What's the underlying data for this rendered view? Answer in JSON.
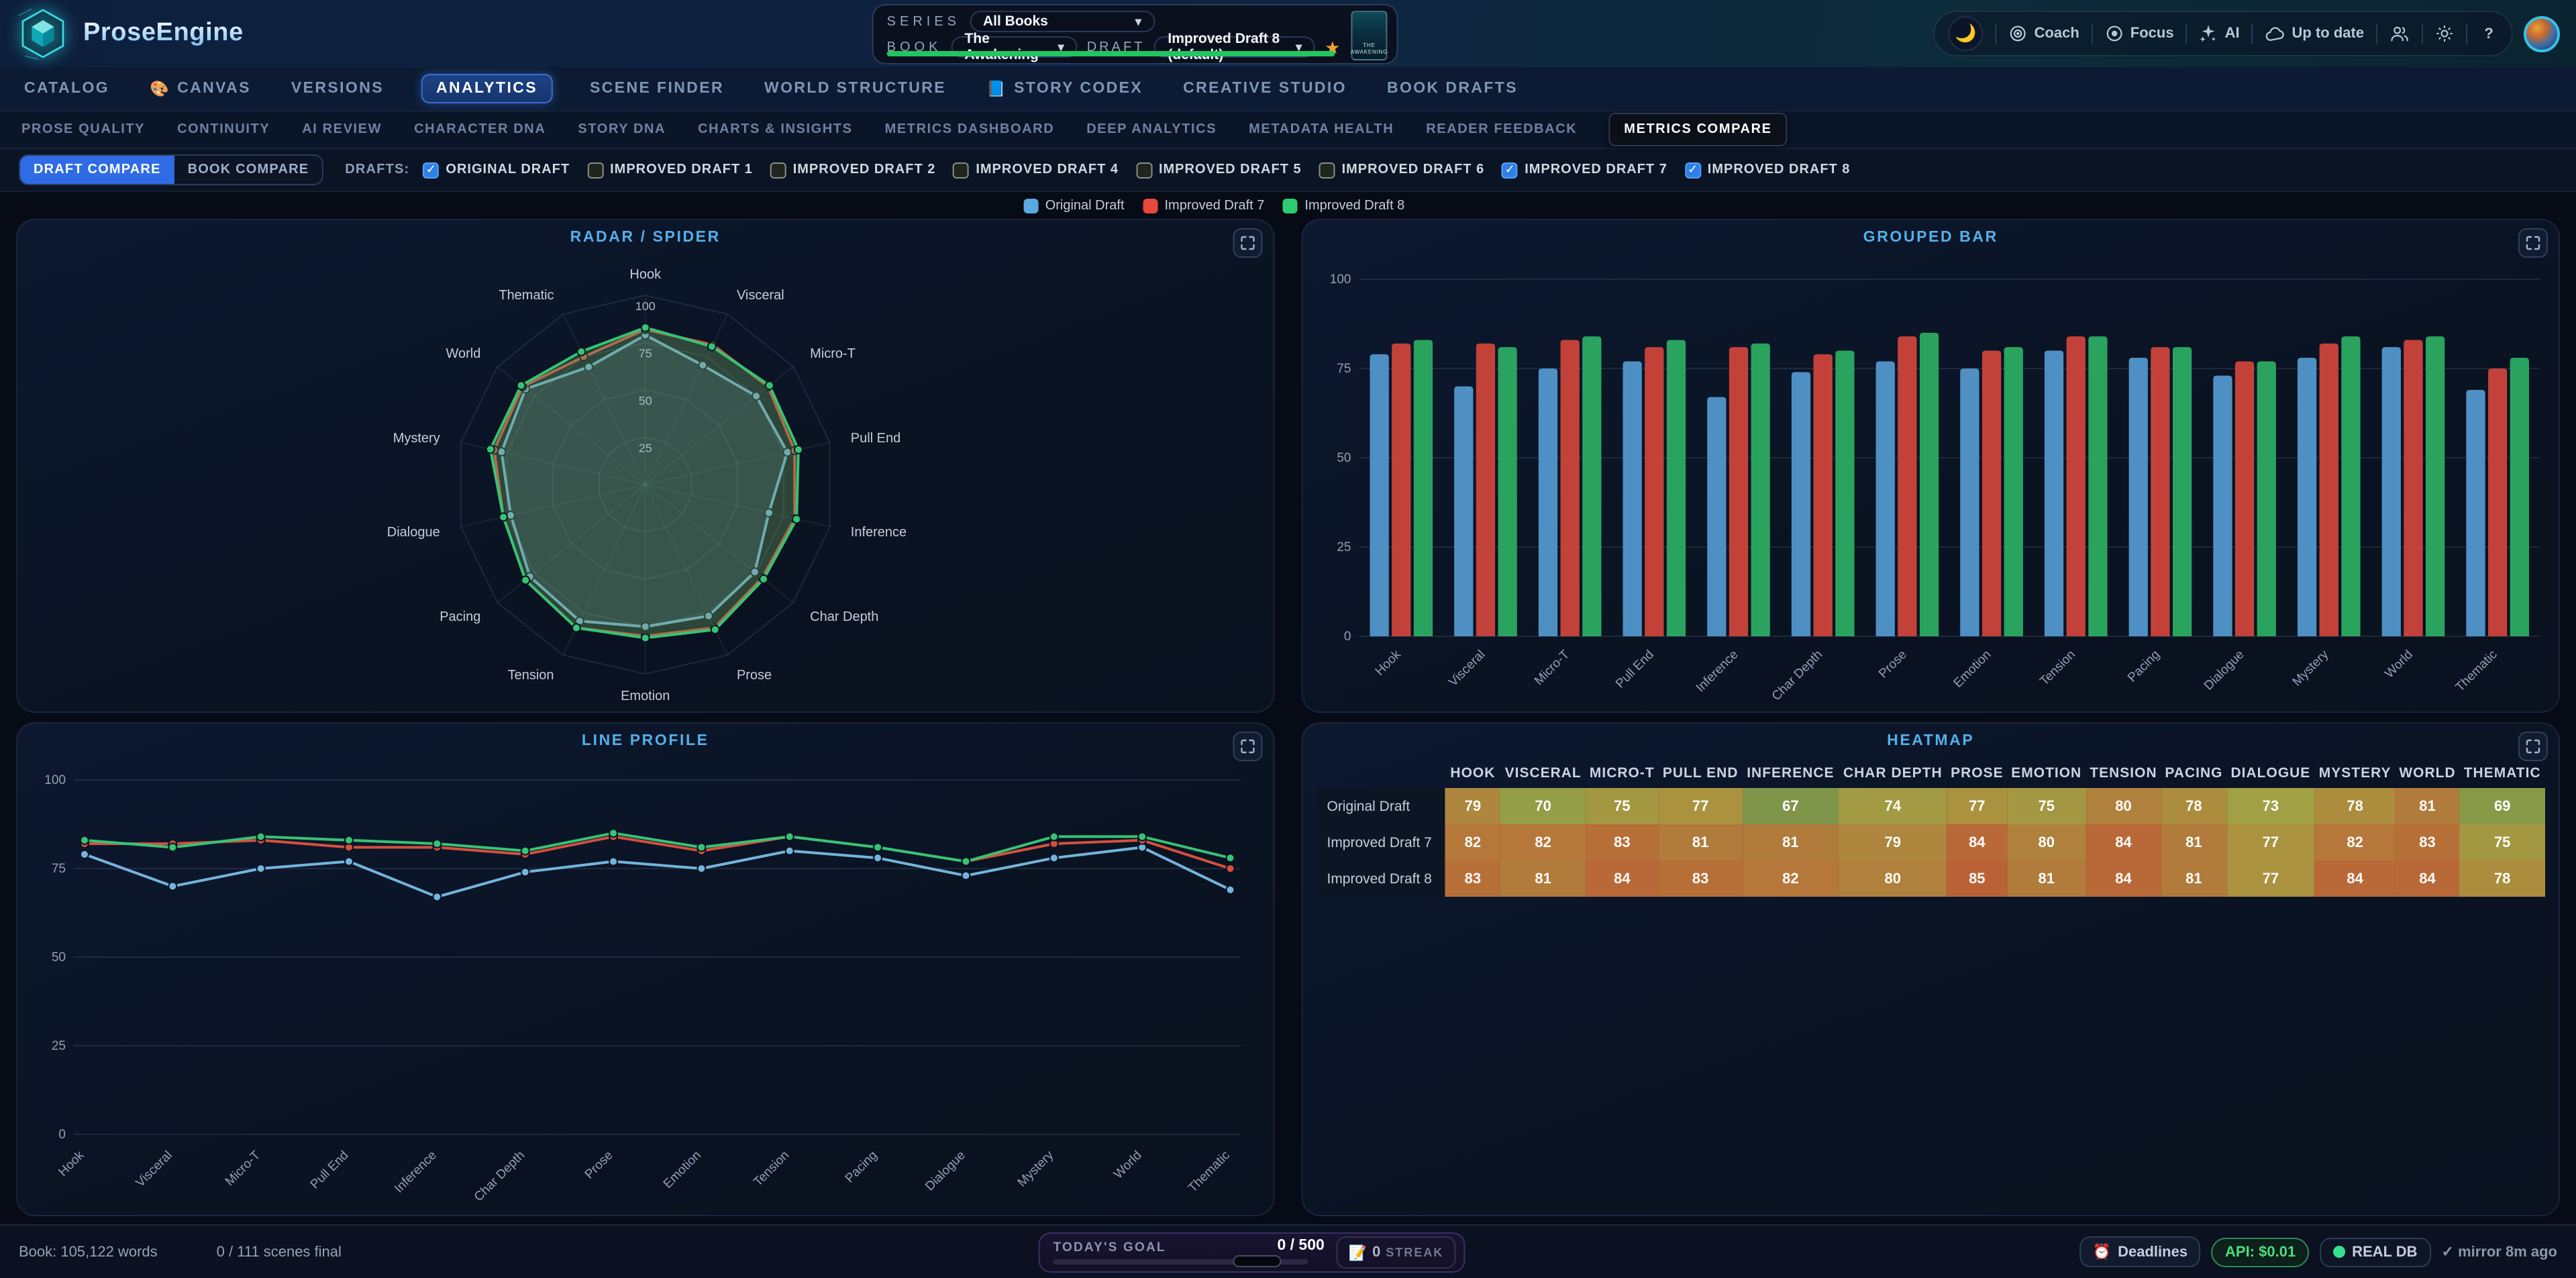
{
  "app": {
    "title": "ProseEngine"
  },
  "header": {
    "series_label": "SERIES",
    "series_value": "All Books",
    "book_label": "BOOK",
    "book_value": "The Awakening",
    "draft_label": "DRAFT",
    "draft_value": "Improved Draft 8 (default)",
    "cover_title": "THE AWAKENING",
    "actions": [
      {
        "icon": "target-icon",
        "label": "Coach"
      },
      {
        "icon": "focus-icon",
        "label": "Focus"
      },
      {
        "icon": "sparkles-icon",
        "label": "AI"
      },
      {
        "icon": "cloud-icon",
        "label": "Up to date"
      },
      {
        "icon": "users-icon",
        "label": ""
      },
      {
        "icon": "gear-icon",
        "label": ""
      },
      {
        "icon": "help-icon",
        "label": ""
      }
    ]
  },
  "nav": {
    "active": "ANALYTICS",
    "tabs": [
      {
        "label": "CATALOG"
      },
      {
        "label": "CANVAS",
        "icon": "🎨"
      },
      {
        "label": "VERSIONS"
      },
      {
        "label": "ANALYTICS"
      },
      {
        "label": "SCENE FINDER"
      },
      {
        "label": "WORLD STRUCTURE"
      },
      {
        "label": "STORY CODEX",
        "icon": "📘"
      },
      {
        "label": "CREATIVE STUDIO"
      },
      {
        "label": "BOOK DRAFTS"
      }
    ]
  },
  "subnav": {
    "active": "METRICS COMPARE",
    "tabs": [
      {
        "label": "PROSE QUALITY"
      },
      {
        "label": "CONTINUITY"
      },
      {
        "label": "AI REVIEW"
      },
      {
        "label": "CHARACTER DNA"
      },
      {
        "label": "STORY DNA"
      },
      {
        "label": "CHARTS & INSIGHTS"
      },
      {
        "label": "METRICS DASHBOARD"
      },
      {
        "label": "DEEP ANALYTICS"
      },
      {
        "label": "METADATA HEALTH"
      },
      {
        "label": "READER FEEDBACK"
      },
      {
        "label": "METRICS COMPARE"
      }
    ]
  },
  "filterbar": {
    "mode_buttons": [
      {
        "label": "DRAFT COMPARE",
        "active": true
      },
      {
        "label": "BOOK COMPARE",
        "active": false
      }
    ],
    "drafts_label": "DRAFTS:",
    "drafts": [
      {
        "label": "ORIGINAL DRAFT",
        "checked": true
      },
      {
        "label": "IMPROVED DRAFT 1",
        "checked": false
      },
      {
        "label": "IMPROVED DRAFT 2",
        "checked": false
      },
      {
        "label": "IMPROVED DRAFT 4",
        "checked": false
      },
      {
        "label": "IMPROVED DRAFT 5",
        "checked": false
      },
      {
        "label": "IMPROVED DRAFT 6",
        "checked": false
      },
      {
        "label": "IMPROVED DRAFT 7",
        "checked": true
      },
      {
        "label": "IMPROVED DRAFT 8",
        "checked": true
      }
    ]
  },
  "legend": [
    {
      "label": "Original Draft",
      "color": "#5aa9e0"
    },
    {
      "label": "Improved Draft 7",
      "color": "#e8473c"
    },
    {
      "label": "Improved Draft 8",
      "color": "#2ecc71"
    }
  ],
  "panels": {
    "radar_title": "RADAR / SPIDER",
    "bar_title": "GROUPED BAR",
    "line_title": "LINE PROFILE",
    "heatmap_title": "HEATMAP"
  },
  "chart_data": [
    {
      "type": "radar",
      "title": "RADAR / SPIDER",
      "categories": [
        "Hook",
        "Visceral",
        "Micro-T",
        "Pull End",
        "Inference",
        "Char Depth",
        "Prose",
        "Emotion",
        "Tension",
        "Pacing",
        "Dialogue",
        "Mystery",
        "World",
        "Thematic"
      ],
      "rmax": 100,
      "ticks": [
        25,
        50,
        75,
        100
      ],
      "series": [
        {
          "name": "Original Draft",
          "color": "#74b4dc",
          "values": [
            79,
            70,
            75,
            77,
            67,
            74,
            77,
            75,
            80,
            78,
            73,
            78,
            81,
            69
          ]
        },
        {
          "name": "Improved Draft 7",
          "color": "#d4503e",
          "values": [
            82,
            82,
            83,
            81,
            81,
            79,
            84,
            80,
            84,
            81,
            77,
            82,
            83,
            75
          ]
        },
        {
          "name": "Improved Draft 8",
          "color": "#36c474",
          "values": [
            83,
            81,
            84,
            83,
            82,
            80,
            85,
            81,
            84,
            81,
            77,
            84,
            84,
            78
          ]
        }
      ]
    },
    {
      "type": "bar",
      "title": "GROUPED BAR",
      "categories": [
        "Hook",
        "Visceral",
        "Micro-T",
        "Pull End",
        "Inference",
        "Char Depth",
        "Prose",
        "Emotion",
        "Tension",
        "Pacing",
        "Dialogue",
        "Mystery",
        "World",
        "Thematic"
      ],
      "ylim": [
        0,
        100
      ],
      "yticks": [
        0,
        25,
        50,
        75,
        100
      ],
      "series": [
        {
          "name": "Original Draft",
          "color": "#4e90c4",
          "values": [
            79,
            70,
            75,
            77,
            67,
            74,
            77,
            75,
            80,
            78,
            73,
            78,
            81,
            69
          ]
        },
        {
          "name": "Improved Draft 7",
          "color": "#c2423a",
          "values": [
            82,
            82,
            83,
            81,
            81,
            79,
            84,
            80,
            84,
            81,
            77,
            82,
            83,
            75
          ]
        },
        {
          "name": "Improved Draft 8",
          "color": "#29a35e",
          "values": [
            83,
            81,
            84,
            83,
            82,
            80,
            85,
            81,
            84,
            81,
            77,
            84,
            84,
            78
          ]
        }
      ]
    },
    {
      "type": "line",
      "title": "LINE PROFILE",
      "categories": [
        "Hook",
        "Visceral",
        "Micro-T",
        "Pull End",
        "Inference",
        "Char Depth",
        "Prose",
        "Emotion",
        "Tension",
        "Pacing",
        "Dialogue",
        "Mystery",
        "World",
        "Thematic"
      ],
      "ylim": [
        0,
        100
      ],
      "yticks": [
        0,
        25,
        50,
        75,
        100
      ],
      "series": [
        {
          "name": "Original Draft",
          "color": "#74b4dc",
          "values": [
            79,
            70,
            75,
            77,
            67,
            74,
            77,
            75,
            80,
            78,
            73,
            78,
            81,
            69
          ]
        },
        {
          "name": "Improved Draft 7",
          "color": "#d4503e",
          "values": [
            82,
            82,
            83,
            81,
            81,
            79,
            84,
            80,
            84,
            81,
            77,
            82,
            83,
            75
          ]
        },
        {
          "name": "Improved Draft 8",
          "color": "#36c474",
          "values": [
            83,
            81,
            84,
            83,
            82,
            80,
            85,
            81,
            84,
            81,
            77,
            84,
            84,
            78
          ]
        }
      ]
    },
    {
      "type": "heatmap",
      "title": "HEATMAP",
      "columns": [
        "HOOK",
        "VISCERAL",
        "MICRO-T",
        "PULL END",
        "INFERENCE",
        "CHAR DEPTH",
        "PROSE",
        "EMOTION",
        "TENSION",
        "PACING",
        "DIALOGUE",
        "MYSTERY",
        "WORLD",
        "THEMATIC"
      ],
      "rows": [
        {
          "label": "Original Draft",
          "values": [
            79,
            70,
            75,
            77,
            67,
            74,
            77,
            75,
            80,
            78,
            73,
            78,
            81,
            69
          ]
        },
        {
          "label": "Improved Draft 7",
          "values": [
            82,
            82,
            83,
            81,
            81,
            79,
            84,
            80,
            84,
            81,
            77,
            82,
            83,
            75
          ]
        },
        {
          "label": "Improved Draft 8",
          "values": [
            83,
            81,
            84,
            83,
            82,
            80,
            85,
            81,
            84,
            81,
            77,
            84,
            84,
            78
          ]
        }
      ]
    }
  ],
  "statusbar": {
    "book_words": "Book: 105,122 words",
    "scenes": "0 / 111 scenes final",
    "goal_label": "TODAY'S GOAL",
    "goal_value": "0 / 500",
    "streak_value": "0",
    "streak_label": "STREAK",
    "deadlines_label": "Deadlines",
    "api_label": "API: $0.01",
    "db_label": "REAL DB",
    "mirror_label": "✓ mirror 8m ago"
  }
}
